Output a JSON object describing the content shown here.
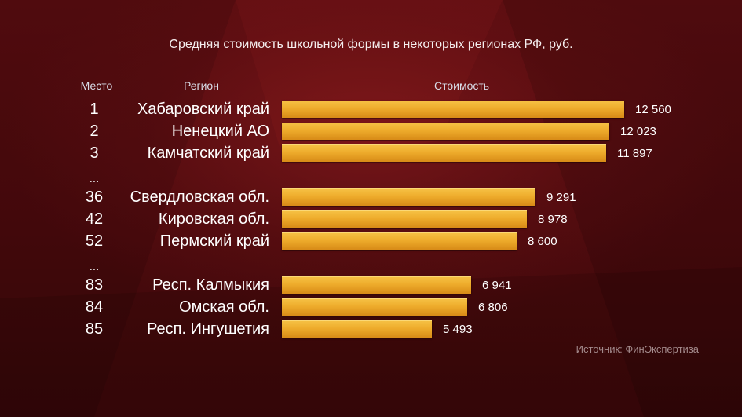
{
  "chart_data": {
    "type": "bar",
    "orientation": "horizontal",
    "title": "Средняя стоимость школьной формы в некоторых регионах РФ, руб.",
    "column_headers": {
      "rank": "Место",
      "region": "Регион",
      "value": "Стоимость"
    },
    "rows": [
      {
        "rank": "1",
        "region": "Хабаровский край",
        "value": 12560,
        "label": "12 560"
      },
      {
        "rank": "2",
        "region": "Ненецкий АО",
        "value": 12023,
        "label": "12 023"
      },
      {
        "rank": "3",
        "region": "Камчатский край",
        "value": 11897,
        "label": "11 897"
      },
      {
        "rank": "...",
        "region": "",
        "value": null,
        "label": ""
      },
      {
        "rank": "36",
        "region": "Свердловская обл.",
        "value": 9291,
        "label": "9 291"
      },
      {
        "rank": "42",
        "region": "Кировская обл.",
        "value": 8978,
        "label": "8 978"
      },
      {
        "rank": "52",
        "region": "Пермский край",
        "value": 8600,
        "label": "8 600"
      },
      {
        "rank": "...",
        "region": "",
        "value": null,
        "label": ""
      },
      {
        "rank": "83",
        "region": "Респ. Калмыкия",
        "value": 6941,
        "label": "6 941"
      },
      {
        "rank": "84",
        "region": "Омская обл.",
        "value": 6806,
        "label": "6 806"
      },
      {
        "rank": "85",
        "region": "Респ. Ингушетия",
        "value": 5493,
        "label": "5 493"
      }
    ],
    "bar_color": "#eeac2c",
    "source": "Источник: ФинЭкспертиза",
    "grid": false,
    "legend": "none"
  }
}
